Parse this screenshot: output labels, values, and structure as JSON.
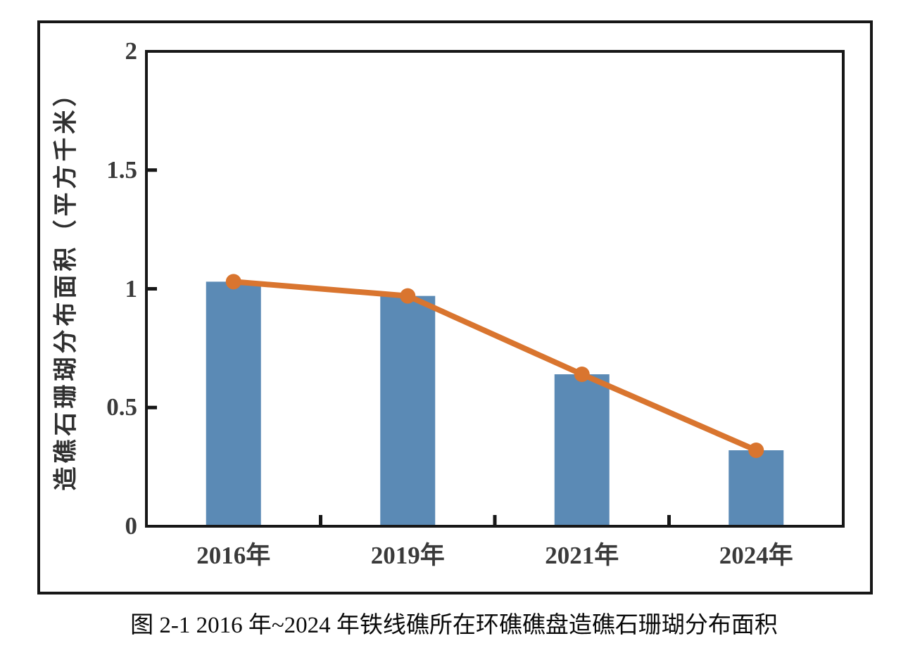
{
  "caption": "图 2-1 2016 年~2024 年铁线礁所在环礁礁盘造礁石珊瑚分布面积",
  "chart_data": {
    "type": "bar",
    "categories": [
      "2016年",
      "2019年",
      "2021年",
      "2024年"
    ],
    "series": [
      {
        "type": "bar",
        "values": [
          1.03,
          0.97,
          0.64,
          0.32
        ]
      },
      {
        "type": "line",
        "values": [
          1.03,
          0.97,
          0.64,
          0.32
        ]
      }
    ],
    "title": "",
    "xlabel": "",
    "ylabel": "造礁石珊瑚分布面积（平方千米）",
    "ylim": [
      0,
      2
    ],
    "yticks": [
      0,
      0.5,
      1,
      1.5,
      2
    ],
    "ytick_labels": [
      "0",
      "0.5",
      "1",
      "1.5",
      "2"
    ],
    "grid": false,
    "legend": "none",
    "colors": {
      "bar": "#5B8AB5",
      "line": "#D9752F",
      "axis": "#171717",
      "tick_text": "#3a3a3a"
    }
  }
}
